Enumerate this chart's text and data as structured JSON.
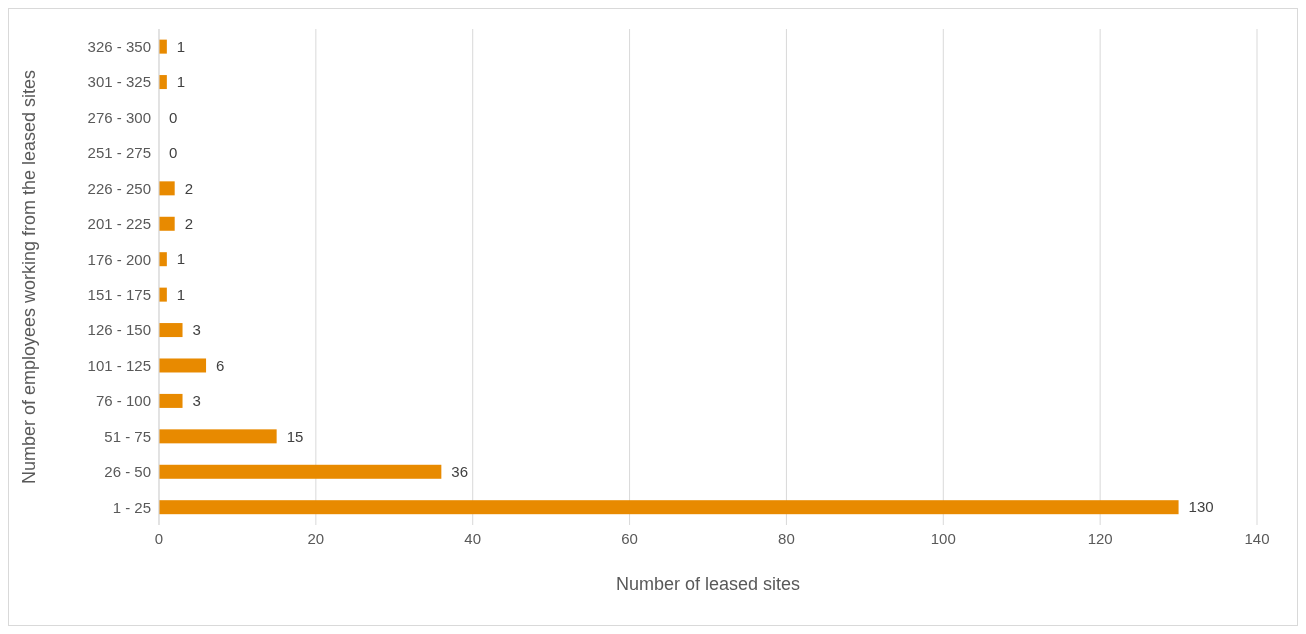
{
  "chart_data": {
    "type": "bar",
    "orientation": "horizontal",
    "xlabel": "Number of leased sites",
    "ylabel": "Number of employees working from the leased sites",
    "categories": [
      "326 - 350",
      "301 - 325",
      "276 - 300",
      "251 - 275",
      "226 - 250",
      "201 - 225",
      "176 - 200",
      "151 - 175",
      "126 - 150",
      "101 - 125",
      "76 - 100",
      "51 - 75",
      "26 - 50",
      "1 - 25"
    ],
    "values": [
      1,
      1,
      0,
      0,
      2,
      2,
      1,
      1,
      3,
      6,
      3,
      15,
      36,
      130
    ],
    "color": "#e88a00",
    "xlim": [
      0,
      140
    ],
    "xticks": [
      0,
      20,
      40,
      60,
      80,
      100,
      120,
      140
    ],
    "grid": "x",
    "data_labels": true
  }
}
